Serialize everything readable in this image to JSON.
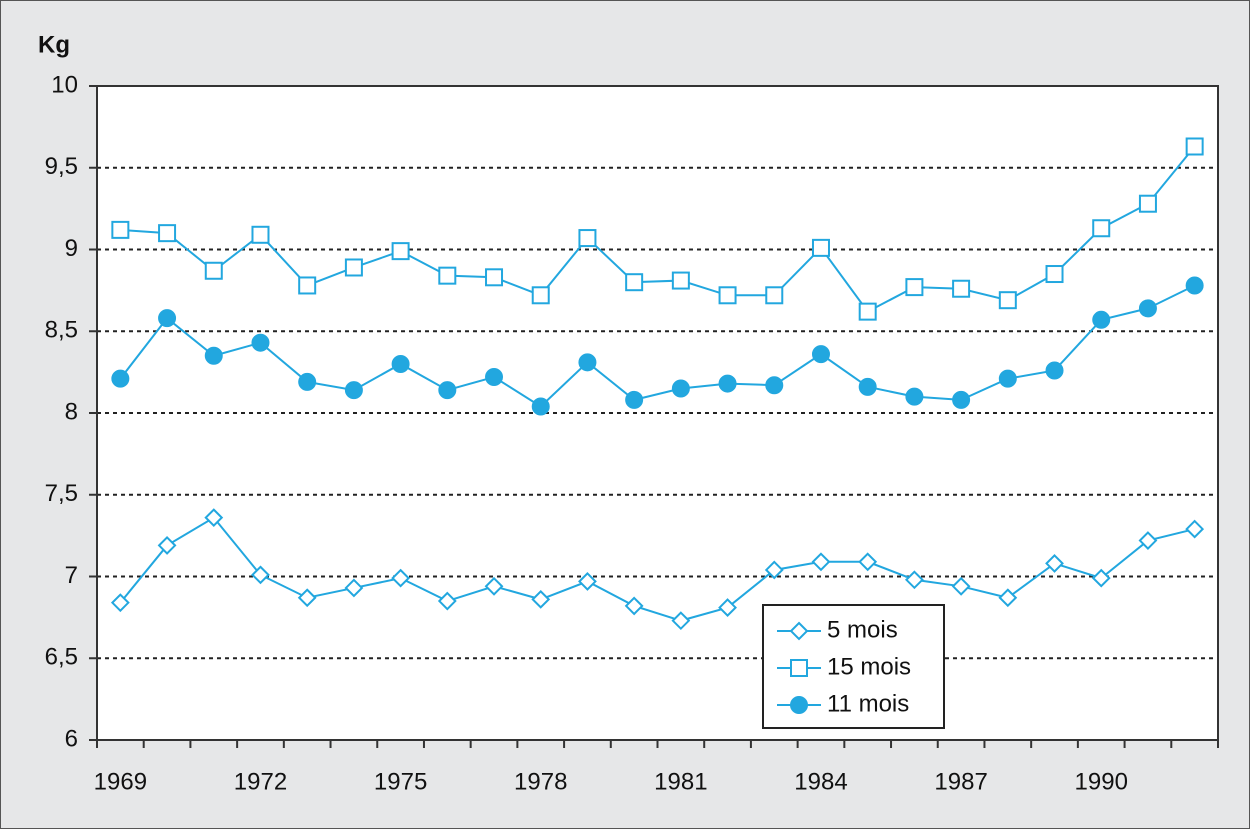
{
  "chart_data": {
    "type": "line",
    "y_axis_label": "Kg",
    "categories": [
      "1969",
      null,
      null,
      "1972",
      null,
      null,
      "1975",
      null,
      null,
      "1978",
      null,
      null,
      "1981",
      null,
      null,
      "1984",
      null,
      null,
      "1987",
      null,
      null,
      "1990",
      null,
      null
    ],
    "series": [
      {
        "name": "5 mois",
        "color": "#22a7df",
        "marker": "diamond",
        "values": [
          6.84,
          7.19,
          7.36,
          7.01,
          6.87,
          6.93,
          6.99,
          6.85,
          6.94,
          6.86,
          6.97,
          6.82,
          6.73,
          6.81,
          7.04,
          7.09,
          7.09,
          6.98,
          6.94,
          6.87,
          7.08,
          6.99,
          7.22,
          7.29
        ]
      },
      {
        "name": "15 mois",
        "color": "#22a7df",
        "marker": "square",
        "values": [
          9.12,
          9.1,
          8.87,
          9.09,
          8.78,
          8.89,
          8.99,
          8.84,
          8.83,
          8.72,
          9.07,
          8.8,
          8.81,
          8.72,
          8.72,
          9.01,
          8.62,
          8.77,
          8.76,
          8.69,
          8.85,
          9.13,
          9.28,
          9.63
        ]
      },
      {
        "name": "11 mois",
        "color": "#22a7df",
        "marker": "circle",
        "values": [
          8.21,
          8.58,
          8.35,
          8.43,
          8.19,
          8.14,
          8.3,
          8.14,
          8.22,
          8.04,
          8.31,
          8.08,
          8.15,
          8.18,
          8.17,
          8.36,
          8.16,
          8.1,
          8.08,
          8.21,
          8.26,
          8.57,
          8.64,
          8.78
        ]
      }
    ],
    "ylim": [
      6,
      10
    ],
    "yticks": [
      6,
      {
        "value": 6.5,
        "label": "6,5"
      },
      7,
      {
        "value": 7.5,
        "label": "7,5"
      },
      8,
      {
        "value": 8.5,
        "label": "8,5"
      },
      9,
      {
        "value": 9.5,
        "label": "9,5"
      },
      10
    ],
    "grid": true,
    "legend": "lower right"
  }
}
